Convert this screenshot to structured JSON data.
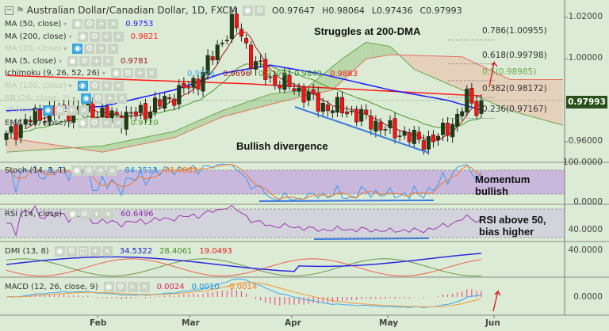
{
  "header": {
    "title": "Australian Dollar/Canadian Dollar, 1D, FXCM",
    "open": "O0.97647",
    "high": "H0.98064",
    "low": "L0.97436",
    "close": "C0.97993"
  },
  "legend": [
    {
      "label": "MA (50, close)",
      "value": "0.9753",
      "color": "#1a1aff"
    },
    {
      "label": "MA (200, close)",
      "value": "0.9821",
      "color": "#ff1a1a"
    },
    {
      "label": "MA (20, close)",
      "value": "",
      "color": "#bbb"
    },
    {
      "label": "MA (5, close)",
      "value": "0.9781",
      "color": "#a01818"
    },
    {
      "label": "Ichimoku (9, 26, 52, 26)",
      "value": "",
      "color": "#333"
    },
    {
      "label": "MA (100, close)",
      "value": "",
      "color": "#bbb"
    },
    {
      "label": "BB (20, close, 2)",
      "value": "",
      "color": "#bbb"
    },
    {
      "label": "Chikou",
      "value": "",
      "color": "#bbb"
    },
    {
      "label": "EMA (21, close)",
      "value": "0.9720",
      "color": "#4a9a2a"
    }
  ],
  "ichimoku_values": [
    {
      "v": "0.9726",
      "c": "#3aa7e0"
    },
    {
      "v": "0.9696",
      "c": "#a01818"
    },
    {
      "v": "0.9799",
      "c": "#4a9a2a"
    },
    {
      "v": "0.9849",
      "c": "#2e8a2e"
    },
    {
      "v": "0.9883",
      "c": "#ff1a1a"
    }
  ],
  "annotations": {
    "struggles": "Struggles at 200-DMA",
    "bullish_div": "Bullish divergence",
    "momentum": "Momentum bullish",
    "rsi": "RSI above 50, bias higher"
  },
  "fib": [
    {
      "label": "0.786(1.00955)",
      "level": 1.00955,
      "color": "#333"
    },
    {
      "label": "0.618(0.99798)",
      "level": 0.99798,
      "color": "#333"
    },
    {
      "label": "0.5(0.98985)",
      "level": 0.98985,
      "color": "#6aa84f"
    },
    {
      "label": "0.382(0.98172)",
      "level": 0.98172,
      "color": "#333"
    },
    {
      "label": "0.236(0.97167)",
      "level": 0.97167,
      "color": "#333"
    }
  ],
  "price_axis": [
    "1.02000",
    "1.00000",
    "0.96000"
  ],
  "price_ticks": [
    1.02,
    1.0,
    0.96
  ],
  "current_price": "0.97993",
  "stoch": {
    "label": "Stoch (14, 3, 1)",
    "k": "84.3513",
    "d": "81.6802",
    "axis": [
      "100.0000",
      "0.0000"
    ]
  },
  "rsi": {
    "label": "RSI (14, close)",
    "value": "60.6496",
    "axis": "40.0000"
  },
  "dmi": {
    "label": "DMI (13, 8)",
    "adx": "34.5322",
    "pdi": "28.4061",
    "mdi": "19.0493",
    "axis": "40.0000"
  },
  "macd": {
    "label": "MACD (12, 26, close, 9)",
    "hist": "0.0024",
    "macd": "0.0010",
    "signal": "-0.0014",
    "axis": "0.0000"
  },
  "time_axis": [
    "Feb",
    "Mar",
    "Apr",
    "May",
    "Jun"
  ],
  "colors": {
    "bull": "#1e3d12",
    "bear": "#ff1010",
    "cloud_green": "#b5d6a5",
    "cloud_brown": "#e6cdb8",
    "band": "#c9b8dc",
    "rsi_band": "#d3d3dc"
  },
  "chart_data": {
    "type": "candlestick",
    "close_keypoints": [
      [
        0,
        0.962
      ],
      [
        4,
        0.97
      ],
      [
        9,
        0.974
      ],
      [
        15,
        0.976
      ],
      [
        20,
        0.973
      ],
      [
        25,
        0.972
      ],
      [
        30,
        0.976
      ],
      [
        37,
        0.985
      ],
      [
        40,
        0.99
      ],
      [
        44,
        1.005
      ],
      [
        47,
        1.017
      ],
      [
        49,
        1.012
      ],
      [
        51,
        1.0
      ],
      [
        55,
        0.99
      ],
      [
        58,
        0.988
      ],
      [
        61,
        0.985
      ],
      [
        65,
        0.978
      ],
      [
        71,
        0.975
      ],
      [
        76,
        0.97
      ],
      [
        80,
        0.965
      ],
      [
        83,
        0.964
      ],
      [
        86,
        0.96
      ],
      [
        90,
        0.962
      ],
      [
        94,
        0.972
      ],
      [
        96,
        0.981
      ],
      [
        98,
        0.977
      ],
      [
        99,
        0.97993
      ]
    ],
    "ma50_keypoints": [
      [
        0,
        0.975
      ],
      [
        20,
        0.977
      ],
      [
        35,
        0.985
      ],
      [
        45,
        0.993
      ],
      [
        55,
        0.997
      ],
      [
        65,
        0.993
      ],
      [
        80,
        0.985
      ],
      [
        92,
        0.98
      ],
      [
        99,
        0.9753
      ]
    ],
    "ma200_keypoints": [
      [
        0,
        0.992
      ],
      [
        50,
        0.988
      ],
      [
        99,
        0.9821
      ]
    ],
    "span_a": [
      [
        0,
        0.955
      ],
      [
        20,
        0.958
      ],
      [
        35,
        0.965
      ],
      [
        45,
        0.975
      ],
      [
        55,
        0.983
      ],
      [
        62,
        0.985
      ],
      [
        70,
        1.0
      ],
      [
        75,
        1.008
      ],
      [
        80,
        1.006
      ],
      [
        85,
        0.995
      ],
      [
        95,
        0.985
      ],
      [
        105,
        0.975
      ],
      [
        116,
        0.968
      ]
    ],
    "span_b": [
      [
        0,
        0.962
      ],
      [
        20,
        0.955
      ],
      [
        35,
        0.962
      ],
      [
        45,
        0.972
      ],
      [
        55,
        0.978
      ],
      [
        62,
        0.982
      ],
      [
        68,
        0.985
      ],
      [
        75,
        1.0
      ],
      [
        80,
        1.002
      ],
      [
        95,
        1.001
      ],
      [
        105,
        0.99
      ],
      [
        116,
        0.99
      ]
    ],
    "ylim": [
      0.955,
      1.025
    ]
  }
}
